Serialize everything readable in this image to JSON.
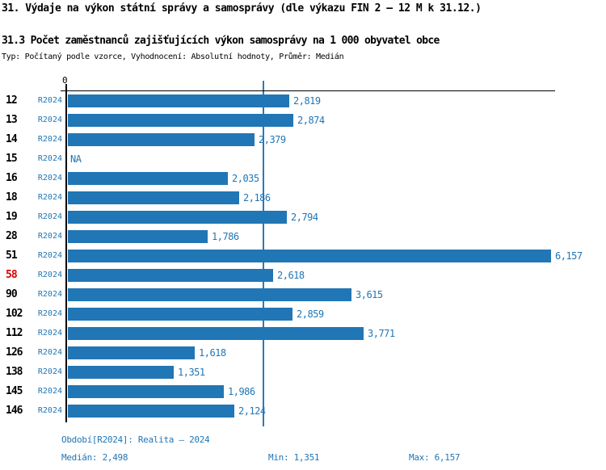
{
  "header": {
    "title": "31. Výdaje na výkon státní správy a samosprávy (dle výkazu FIN 2 – 12 M k 31.12.)",
    "subtitle": "31.3 Počet zaměstnanců zajišťujících výkon samosprávy na 1 000 obyvatel obce",
    "meta": "Typ: Počítaný podle vzorce, Vyhodnocení: Absolutní hodnoty, Průměr: Medián"
  },
  "chart_data": {
    "type": "bar",
    "orientation": "horizontal",
    "axis_zero_label": "0",
    "xlim": [
      0,
      6157
    ],
    "grid": false,
    "median_value": 2498,
    "median_label": "Medián",
    "series_label": "R2024",
    "categories": [
      "12",
      "13",
      "14",
      "15",
      "16",
      "18",
      "19",
      "28",
      "51",
      "58",
      "90",
      "102",
      "112",
      "126",
      "138",
      "145",
      "146"
    ],
    "rows": [
      {
        "id": "12",
        "period": "R2024",
        "value": 2819,
        "label": "2,819",
        "highlight": false
      },
      {
        "id": "13",
        "period": "R2024",
        "value": 2874,
        "label": "2,874",
        "highlight": false
      },
      {
        "id": "14",
        "period": "R2024",
        "value": 2379,
        "label": "2,379",
        "highlight": false
      },
      {
        "id": "15",
        "period": "R2024",
        "value": null,
        "label": "NA",
        "highlight": false
      },
      {
        "id": "16",
        "period": "R2024",
        "value": 2035,
        "label": "2,035",
        "highlight": false
      },
      {
        "id": "18",
        "period": "R2024",
        "value": 2186,
        "label": "2,186",
        "highlight": false
      },
      {
        "id": "19",
        "period": "R2024",
        "value": 2794,
        "label": "2,794",
        "highlight": false
      },
      {
        "id": "28",
        "period": "R2024",
        "value": 1786,
        "label": "1,786",
        "highlight": false
      },
      {
        "id": "51",
        "period": "R2024",
        "value": 6157,
        "label": "6,157",
        "highlight": false
      },
      {
        "id": "58",
        "period": "R2024",
        "value": 2618,
        "label": "2,618",
        "highlight": true
      },
      {
        "id": "90",
        "period": "R2024",
        "value": 3615,
        "label": "3,615",
        "highlight": false
      },
      {
        "id": "102",
        "period": "R2024",
        "value": 2859,
        "label": "2,859",
        "highlight": false
      },
      {
        "id": "112",
        "period": "R2024",
        "value": 3771,
        "label": "3,771",
        "highlight": false
      },
      {
        "id": "126",
        "period": "R2024",
        "value": 1618,
        "label": "1,618",
        "highlight": false
      },
      {
        "id": "138",
        "period": "R2024",
        "value": 1351,
        "label": "1,351",
        "highlight": false
      },
      {
        "id": "145",
        "period": "R2024",
        "value": 1986,
        "label": "1,986",
        "highlight": false
      },
      {
        "id": "146",
        "period": "R2024",
        "value": 2124,
        "label": "2,124",
        "highlight": false
      }
    ]
  },
  "footer": {
    "period_line": "Období[R2024]: Realita – 2024",
    "median": "Medián: 2,498",
    "min": "Min: 1,351",
    "max": "Max: 6,157"
  },
  "colors": {
    "bar": "#2176b5",
    "text_blue": "#2176b5",
    "highlight_red": "#dd0000",
    "median_line": "#2b7bb9",
    "axis": "#000000"
  }
}
